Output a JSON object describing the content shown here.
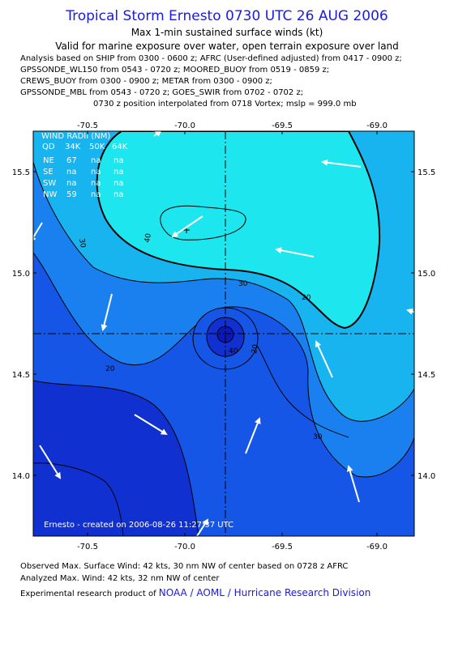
{
  "title": "Tropical Storm Ernesto 0730 UTC 26 AUG 2006",
  "subtitle1": "Max 1-min sustained surface winds (kt)",
  "subtitle2": "Valid for marine exposure over water, open terrain exposure over land",
  "analysis_lines": [
    "Analysis based on  SHIP from 0300 - 0600 z;  AFRC (User-defined adjusted) from 0417 - 0900 z;",
    "GPSSONDE_WL150 from 0543 - 0720 z;  MOORED_BUOY from 0519 - 0859 z;",
    "CREWS_BUOY from 0300 - 0900 z;  METAR from 0300 - 0900 z;",
    "GPSSONDE_MBL from 0543 - 0720 z;  GOES_SWIR from 0702 - 0702 z;",
    "0730 z position interpolated from 0718 Vortex; mslp = 999.0 mb"
  ],
  "map": {
    "lon_ticks": [
      "-70.5",
      "-70.0",
      "-69.5",
      "-69.0"
    ],
    "lat_ticks": [
      "15.5",
      "15.0",
      "14.5",
      "14.0"
    ],
    "contour_labels": [
      "40",
      "30",
      "30",
      "20",
      "20",
      "30",
      "40",
      "20"
    ],
    "credit": "Ernesto - created on 2006-08-26 11:27:37 UTC",
    "wind_radii": {
      "title": "WIND RADII (NM)",
      "header": [
        "QD",
        "34K",
        "50K",
        "64K"
      ],
      "rows": [
        [
          "NE",
          "67",
          "na",
          "na"
        ],
        [
          "SE",
          "na",
          "na",
          "na"
        ],
        [
          "SW",
          "na",
          "na",
          "na"
        ],
        [
          "NW",
          "59",
          "na",
          "na"
        ]
      ]
    },
    "colors": {
      "c40plus": "#1ee6ee",
      "c30_40": "#18b4f0",
      "c20_30": "#1a80f0",
      "c10_20": "#1656e6",
      "c0_10": "#1030d0",
      "center": "#0a18b8"
    }
  },
  "footer": {
    "line1": "Observed Max. Surface Wind: 42 kts, 30 nm NW of center based on 0728 z AFRC",
    "line2": "Analyzed Max. Wind: 42 kts, 32 nm NW of center",
    "line3_prefix": "Experimental research product of",
    "line3_link": "NOAA / AOML / Hurricane Research Division"
  }
}
